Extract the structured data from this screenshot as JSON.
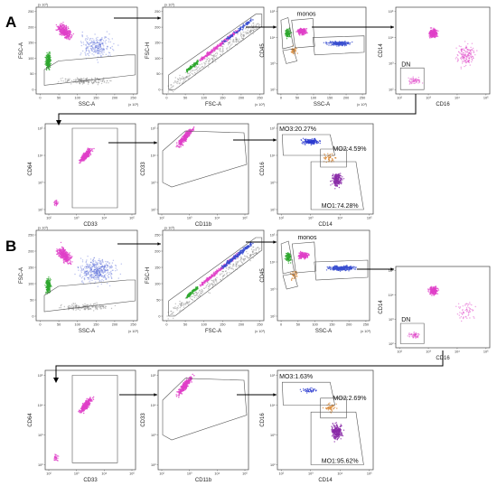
{
  "figure": {
    "sections": [
      {
        "letter": "A",
        "rows": [
          [
            {
              "x_label": "SSC-A",
              "y_label": "FSC-A",
              "x_scale": "(x 10³)",
              "y_scale": "(x 10³)",
              "x_ticks": [
                "0",
                "50",
                "100",
                "150",
                "200",
                "250"
              ],
              "y_ticks": [
                "0",
                "50",
                "100",
                "150",
                "200",
                "250"
              ],
              "gates": []
            },
            {
              "x_label": "FSC-A",
              "y_label": "FSC-H",
              "x_scale": "(x 10³)",
              "y_scale": "(x 10³)",
              "x_ticks": [
                "0",
                "50",
                "100",
                "150",
                "200",
                "250"
              ],
              "y_ticks": [
                "0",
                "50",
                "100",
                "150",
                "200",
                "250"
              ],
              "gates": []
            },
            {
              "x_label": "SSC-A",
              "y_label": "CD45",
              "x_scale": "(x 10³)",
              "y_scale": "",
              "x_ticks": [
                "0",
                "50",
                "100",
                "150",
                "200",
                "250"
              ],
              "y_ticks": [
                "10²",
                "10³",
                "10⁴",
                "10⁵"
              ],
              "gates": [
                "monos"
              ]
            },
            {
              "x_label": "CD16",
              "y_label": "CD14",
              "x_scale": "",
              "y_scale": "",
              "x_ticks": [
                "10²",
                "10³",
                "10⁴",
                "10⁵"
              ],
              "y_ticks": [
                "10²",
                "10³",
                "10⁴",
                "10⁵"
              ],
              "gates": [
                "DN"
              ]
            }
          ],
          [
            {
              "x_label": "CD33",
              "y_label": "CD64",
              "x_scale": "",
              "y_scale": "",
              "x_ticks": [
                "10²",
                "10³",
                "10⁴",
                "10⁵"
              ],
              "y_ticks": [
                "10²",
                "10³",
                "10⁴",
                "10⁵"
              ],
              "gates": []
            },
            {
              "x_label": "CD11b",
              "y_label": "CD33",
              "x_scale": "",
              "y_scale": "",
              "x_ticks": [
                "10²",
                "10³",
                "10⁴",
                "10⁵"
              ],
              "y_ticks": [
                "10²",
                "10³",
                "10⁴",
                "10⁵"
              ],
              "gates": []
            },
            {
              "x_label": "CD14",
              "y_label": "CD16",
              "x_scale": "",
              "y_scale": "",
              "x_ticks": [
                "10²",
                "10³",
                "10⁴",
                "10⁵"
              ],
              "y_ticks": [
                "10²",
                "10³",
                "10⁴",
                "10⁵"
              ],
              "gates": [
                "MO3:20.27%",
                "MO2:4.59%",
                "MO1:74.28%"
              ]
            }
          ]
        ]
      },
      {
        "letter": "B",
        "rows": [
          [
            {
              "x_label": "SSC-A",
              "y_label": "FSC-A",
              "x_scale": "(x 10³)",
              "y_scale": "(x 10³)",
              "x_ticks": [
                "0",
                "50",
                "100",
                "150",
                "200",
                "250"
              ],
              "y_ticks": [
                "0",
                "50",
                "100",
                "150",
                "200",
                "250"
              ],
              "gates": []
            },
            {
              "x_label": "FSC-A",
              "y_label": "FSC-H",
              "x_scale": "(x 10³)",
              "y_scale": "(x 10³)",
              "x_ticks": [
                "0",
                "50",
                "100",
                "150",
                "200",
                "250"
              ],
              "y_ticks": [
                "0",
                "50",
                "100",
                "150",
                "200",
                "250"
              ],
              "gates": []
            },
            {
              "x_label": "SSC-A",
              "y_label": "CD45",
              "x_scale": "(x 10³)",
              "y_scale": "",
              "x_ticks": [
                "0",
                "50",
                "100",
                "150",
                "200",
                "250"
              ],
              "y_ticks": [
                "10²",
                "10³",
                "10⁴",
                "10⁵"
              ],
              "gates": [
                "monos"
              ]
            },
            {
              "x_label": "CD16",
              "y_label": "CD14",
              "x_scale": "",
              "y_scale": "",
              "x_ticks": [
                "10²",
                "10³",
                "10⁴",
                "10⁵"
              ],
              "y_ticks": [
                "10²",
                "10³",
                "10⁴",
                "10⁵"
              ],
              "gates": [
                "DN"
              ]
            }
          ],
          [
            {
              "x_label": "CD33",
              "y_label": "CD64",
              "x_scale": "",
              "y_scale": "",
              "x_ticks": [
                "10²",
                "10³",
                "10⁴",
                "10⁵"
              ],
              "y_ticks": [
                "10²",
                "10³",
                "10⁴",
                "10⁵"
              ],
              "gates": []
            },
            {
              "x_label": "CD11b",
              "y_label": "CD33",
              "x_scale": "",
              "y_scale": "",
              "x_ticks": [
                "10²",
                "10³",
                "10⁴",
                "10⁵"
              ],
              "y_ticks": [
                "10²",
                "10³",
                "10⁴",
                "10⁵"
              ],
              "gates": []
            },
            {
              "x_label": "CD14",
              "y_label": "CD16",
              "x_scale": "",
              "y_scale": "",
              "x_ticks": [
                "10²",
                "10³",
                "10⁴",
                "10⁵"
              ],
              "y_ticks": [
                "10²",
                "10³",
                "10⁴",
                "10⁵"
              ],
              "gates": [
                "MO3:1.63%",
                "MO2:2.69%",
                "MO1:95.62%"
              ]
            }
          ]
        ]
      }
    ],
    "colors": {
      "monocytes": "#e040c8",
      "lymphocytes": "#2ea82e",
      "granulocytes": "#3a4fd0",
      "debris": "#888888",
      "mo1": "#8a2aa8",
      "mo2": "#d88a3a",
      "mo3": "#2a3ad0"
    }
  }
}
